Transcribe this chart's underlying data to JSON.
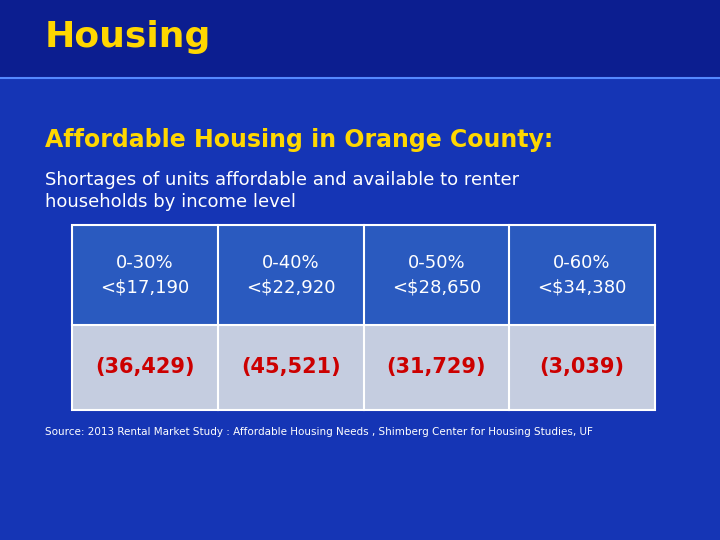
{
  "background_color": "#1535b5",
  "header_bg_top": "#0a1a8a",
  "header_bg_bottom": "#0d28c0",
  "header_text": "Housing",
  "header_text_color": "#ffd700",
  "title_text": "Affordable Housing in Orange County:",
  "title_color": "#ffd700",
  "subtitle_line1": "Shortages of units affordable and available to renter",
  "subtitle_line2": "households by income level",
  "subtitle_color": "#ffffff",
  "table_header_bg": "#2a5abf",
  "table_header_text_color": "#ffffff",
  "table_value_bg": "#c5cde0",
  "table_value_text_color": "#cc0000",
  "table_border_color": "#ffffff",
  "table_headers": [
    "0-30%\n<$17,190",
    "0-40%\n<$22,920",
    "0-50%\n<$28,650",
    "0-60%\n<$34,380"
  ],
  "table_values": [
    "(36,429)",
    "(45,521)",
    "(31,729)",
    "(3,039)"
  ],
  "source_text": "Source: 2013 Rental Market Study : Affordable Housing Needs , Shimberg Center for Housing Studies, UF",
  "source_color": "#ffffff",
  "fig_width": 7.2,
  "fig_height": 5.4,
  "dpi": 100
}
